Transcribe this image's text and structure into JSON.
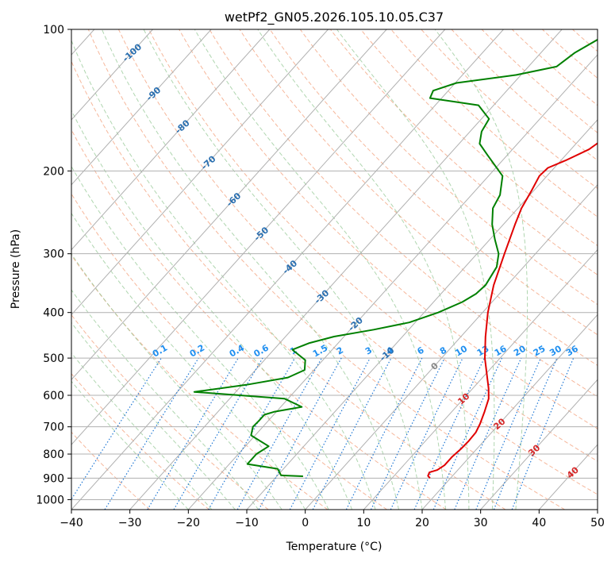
{
  "chart_data": {
    "type": "line",
    "title": "wetPf2_GN05.2026.105.10.05.C37",
    "xlabel": "Temperature (°C)",
    "ylabel": "Pressure (hPa)",
    "xlim": [
      -40,
      50
    ],
    "ylim": [
      1050,
      100
    ],
    "y_scale": "log",
    "grid": true,
    "x_ticks": [
      -40,
      -30,
      -20,
      -10,
      0,
      10,
      20,
      30,
      40,
      50
    ],
    "y_ticks": [
      100,
      200,
      300,
      400,
      500,
      600,
      700,
      800,
      900,
      1000
    ],
    "isotherm_labels": [
      "-100",
      "-90",
      "-80",
      "-70",
      "-60",
      "-50",
      "-40",
      "-30",
      "-20",
      "-10",
      "0",
      "10",
      "20",
      "30",
      "40"
    ],
    "mixing_ratio_labels": [
      "0.1",
      "0.2",
      "0.4",
      "0.6",
      "1",
      "1.5",
      "2",
      "3",
      "4",
      "6",
      "8",
      "10",
      "13",
      "16",
      "20",
      "25",
      "30",
      "36"
    ],
    "series": [
      {
        "color": "#e00000",
        "points": [
          {
            "p": 900,
            "t": 16.5
          },
          {
            "p": 890,
            "t": 15.8
          },
          {
            "p": 875,
            "t": 15.5
          },
          {
            "p": 865,
            "t": 16.5
          },
          {
            "p": 845,
            "t": 17.0
          },
          {
            "p": 810,
            "t": 17.0
          },
          {
            "p": 780,
            "t": 17.3
          },
          {
            "p": 750,
            "t": 17.4
          },
          {
            "p": 720,
            "t": 17.3
          },
          {
            "p": 690,
            "t": 16.7
          },
          {
            "p": 650,
            "t": 15.6
          },
          {
            "p": 610,
            "t": 14.3
          },
          {
            "p": 580,
            "t": 12.7
          },
          {
            "p": 550,
            "t": 10.8
          },
          {
            "p": 500,
            "t": 7.4
          },
          {
            "p": 450,
            "t": 4.2
          },
          {
            "p": 400,
            "t": 0.9
          },
          {
            "p": 350,
            "t": -2.3
          },
          {
            "p": 300,
            "t": -5.3
          },
          {
            "p": 260,
            "t": -8.0
          },
          {
            "p": 240,
            "t": -9.4
          },
          {
            "p": 220,
            "t": -10.4
          },
          {
            "p": 205,
            "t": -11.3
          },
          {
            "p": 197,
            "t": -11.1
          },
          {
            "p": 190,
            "t": -9.2
          },
          {
            "p": 180,
            "t": -6.9
          },
          {
            "p": 165,
            "t": -5.4
          },
          {
            "p": 150,
            "t": -3.9
          },
          {
            "p": 135,
            "t": -4.1
          },
          {
            "p": 120,
            "t": -4.9
          },
          {
            "p": 110,
            "t": -5.5
          },
          {
            "p": 100,
            "t": -6.0
          }
        ]
      },
      {
        "color": "#008000",
        "points": [
          {
            "p": 892,
            "t": -5.5
          },
          {
            "p": 888,
            "t": -9.4
          },
          {
            "p": 860,
            "t": -11.0
          },
          {
            "p": 840,
            "t": -16.9
          },
          {
            "p": 800,
            "t": -16.9
          },
          {
            "p": 770,
            "t": -16.0
          },
          {
            "p": 730,
            "t": -20.7
          },
          {
            "p": 700,
            "t": -21.7
          },
          {
            "p": 680,
            "t": -21.6
          },
          {
            "p": 660,
            "t": -21.6
          },
          {
            "p": 650,
            "t": -20.3
          },
          {
            "p": 635,
            "t": -16.4
          },
          {
            "p": 610,
            "t": -20.6
          },
          {
            "p": 590,
            "t": -37.1
          },
          {
            "p": 570,
            "t": -29.3
          },
          {
            "p": 550,
            "t": -23.3
          },
          {
            "p": 530,
            "t": -21.6
          },
          {
            "p": 505,
            "t": -23.0
          },
          {
            "p": 480,
            "t": -26.8
          },
          {
            "p": 465,
            "t": -25.0
          },
          {
            "p": 450,
            "t": -21.7
          },
          {
            "p": 435,
            "t": -16.0
          },
          {
            "p": 420,
            "t": -11.0
          },
          {
            "p": 400,
            "t": -7.6
          },
          {
            "p": 380,
            "t": -5.1
          },
          {
            "p": 365,
            "t": -4.0
          },
          {
            "p": 350,
            "t": -3.7
          },
          {
            "p": 320,
            "t": -4.6
          },
          {
            "p": 300,
            "t": -6.3
          },
          {
            "p": 280,
            "t": -9.1
          },
          {
            "p": 260,
            "t": -11.9
          },
          {
            "p": 240,
            "t": -14.3
          },
          {
            "p": 225,
            "t": -15.1
          },
          {
            "p": 205,
            "t": -17.6
          },
          {
            "p": 185,
            "t": -23.4
          },
          {
            "p": 175,
            "t": -26.5
          },
          {
            "p": 165,
            "t": -28.0
          },
          {
            "p": 155,
            "t": -28.7
          },
          {
            "p": 145,
            "t": -32.6
          },
          {
            "p": 140,
            "t": -42.0
          },
          {
            "p": 135,
            "t": -42.6
          },
          {
            "p": 130,
            "t": -39.8
          },
          {
            "p": 125,
            "t": -30.8
          },
          {
            "p": 120,
            "t": -25.2
          },
          {
            "p": 112,
            "t": -24.2
          },
          {
            "p": 105,
            "t": -22.3
          },
          {
            "p": 100,
            "t": -21.2
          }
        ]
      }
    ]
  }
}
